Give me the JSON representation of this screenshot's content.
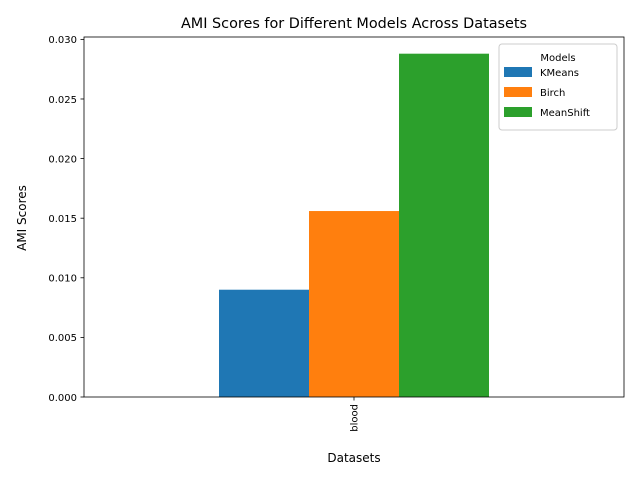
{
  "chart_data": {
    "type": "bar",
    "title": "AMI Scores for Different Models Across Datasets",
    "xlabel": "Datasets",
    "ylabel": "AMI Scores",
    "categories": [
      "blood"
    ],
    "series": [
      {
        "name": "KMeans",
        "values": [
          0.009
        ],
        "color": "#1f77b4"
      },
      {
        "name": "Birch",
        "values": [
          0.0156
        ],
        "color": "#ff7f0e"
      },
      {
        "name": "MeanShift",
        "values": [
          0.0288
        ],
        "color": "#2ca02c"
      }
    ],
    "ylim": [
      0,
      0.0302
    ],
    "yticks": [
      "0.000",
      "0.005",
      "0.010",
      "0.015",
      "0.020",
      "0.025",
      "0.030"
    ],
    "ytick_values": [
      0,
      0.005,
      0.01,
      0.015,
      0.02,
      0.025,
      0.03
    ],
    "grid": false,
    "legend": {
      "title": "Models",
      "placement": "top-right"
    }
  }
}
